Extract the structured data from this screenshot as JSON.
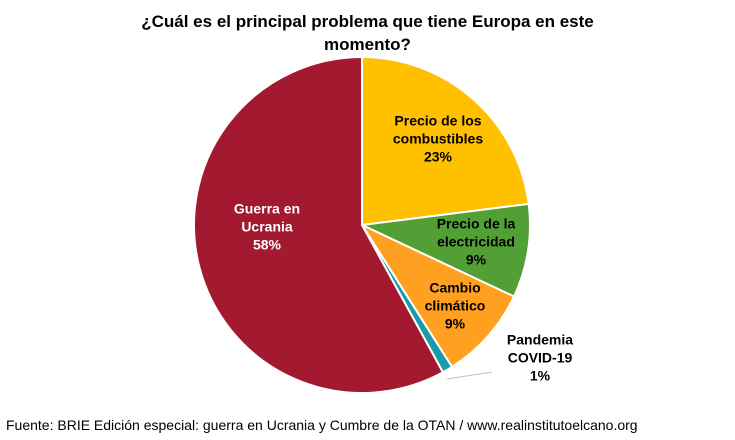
{
  "chart_data": {
    "type": "pie",
    "title_lines": [
      "¿Cuál es el principal problema que tiene Europa en este",
      "momento?"
    ],
    "slices": [
      {
        "key": "fuel",
        "label_lines": [
          "Precio de los",
          "combustibles"
        ],
        "pct_label": "23%",
        "value": 23,
        "color": "#ffc000",
        "text_color": "#000000"
      },
      {
        "key": "electricity",
        "label_lines": [
          "Precio de la",
          "electricidad"
        ],
        "pct_label": "9%",
        "value": 9,
        "color": "#52a035",
        "text_color": "#000000"
      },
      {
        "key": "climate",
        "label_lines": [
          "Cambio",
          "climático"
        ],
        "pct_label": "9%",
        "value": 9,
        "color": "#ffa020",
        "text_color": "#000000"
      },
      {
        "key": "covid",
        "label_lines": [
          "Pandemia",
          "COVID-19"
        ],
        "pct_label": "1%",
        "value": 1,
        "color": "#1a9aaa",
        "text_color": "#000000"
      },
      {
        "key": "war",
        "label_lines": [
          "Guerra en",
          "Ucrania"
        ],
        "pct_label": "58%",
        "value": 58,
        "color": "#a3192f",
        "text_color": "#ffffff"
      }
    ],
    "legend": "none"
  },
  "source": "Fuente: BRIE Edición especial: guerra en Ucrania y Cumbre de la OTAN / www.realinstitutoelcano.org"
}
